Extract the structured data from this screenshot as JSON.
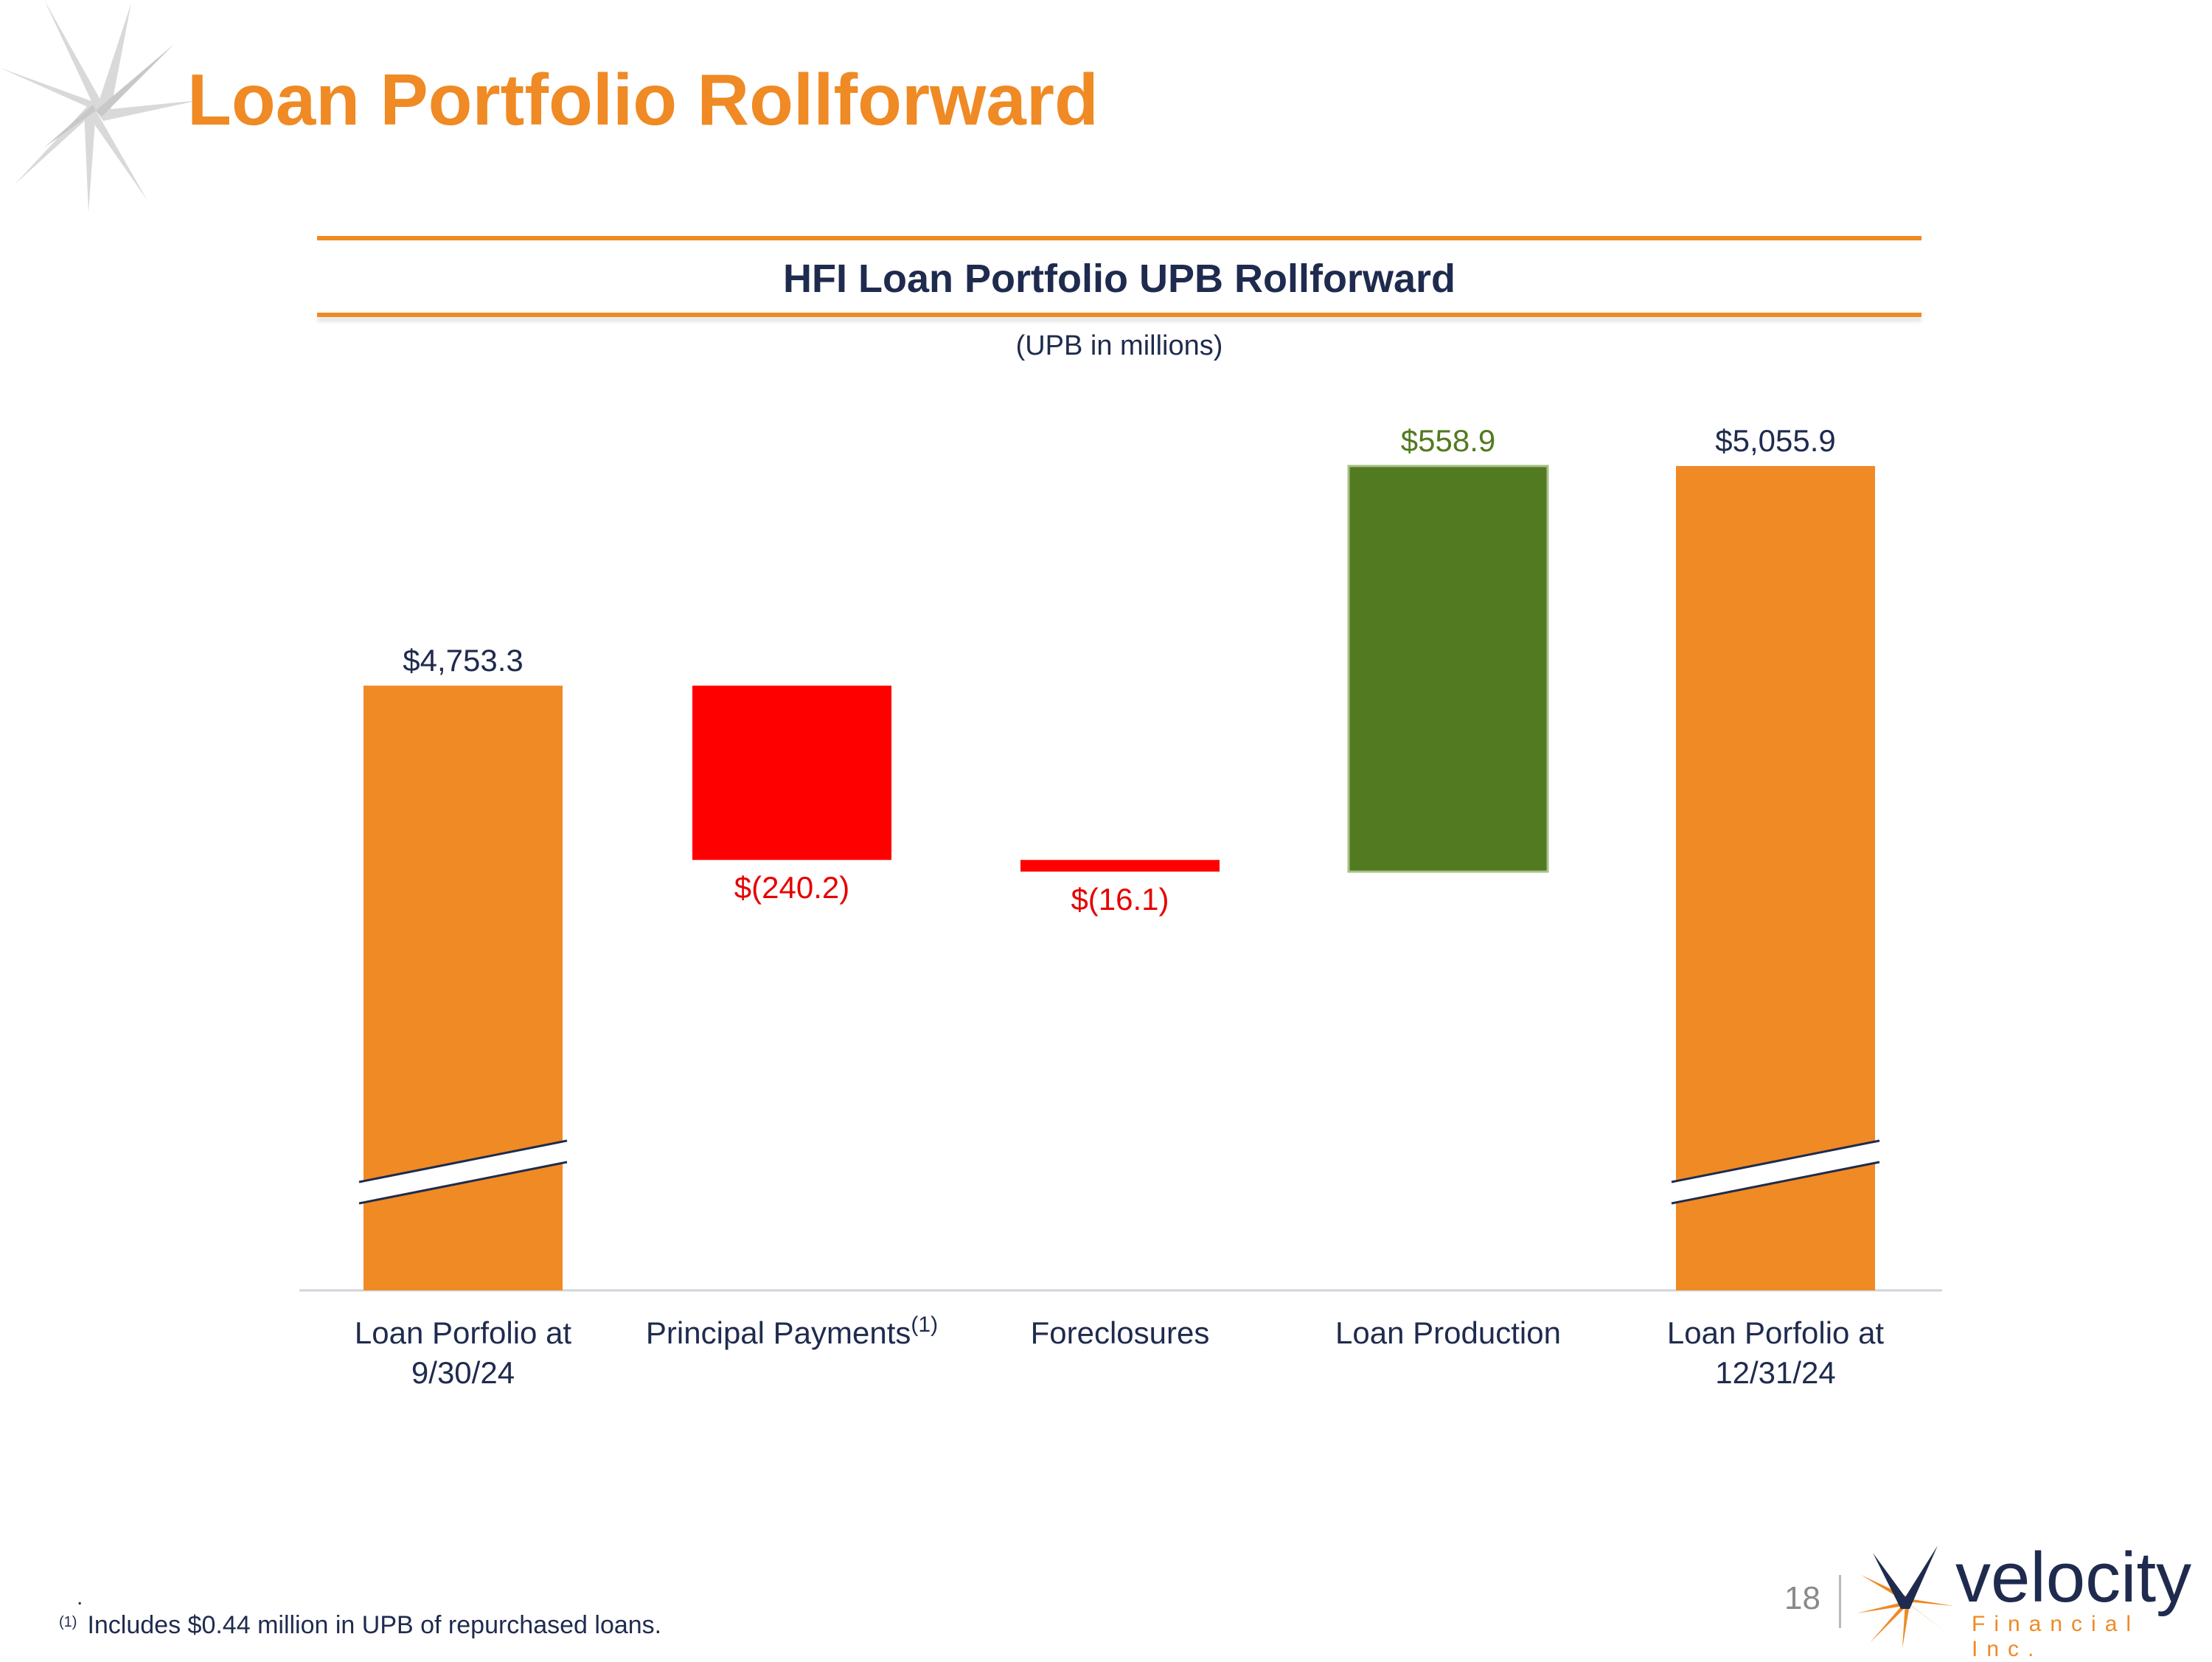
{
  "page": {
    "title": "Loan Portfolio Rollforward",
    "page_number": "18",
    "footnote_marker": "(1)",
    "footnote_text": "Includes $0.44 million in UPB of repurchased loans.",
    "footnote_dot": ".",
    "logo_name": "velocity",
    "logo_sub": "Financial Inc.",
    "colors": {
      "accent": "#EF8A24",
      "navy": "#1F2B4E",
      "negative": "#FF0000",
      "positive": "#527A20"
    }
  },
  "chart_data": {
    "type": "bar",
    "subtype": "waterfall",
    "title": "HFI Loan Portfolio UPB Rollforward",
    "subtitle": "(UPB in millions)",
    "axis_break": true,
    "categories": [
      "Loan Porfolio at 9/30/24",
      "Principal Payments",
      "Foreclosures",
      "Loan Production",
      "Loan Porfolio at 12/31/24"
    ],
    "category_lines": [
      [
        "Loan Porfolio at",
        "9/30/24"
      ],
      [
        "Principal Payments"
      ],
      [
        "Foreclosures"
      ],
      [
        "Loan Production"
      ],
      [
        "Loan Porfolio at",
        "12/31/24"
      ]
    ],
    "category_superscripts": [
      "",
      "(1)",
      "",
      "",
      ""
    ],
    "values": [
      4753.3,
      -240.2,
      -16.1,
      558.9,
      5055.9
    ],
    "bar_kinds": [
      "total",
      "decrease",
      "decrease",
      "increase",
      "total"
    ],
    "labels": [
      "$4,753.3",
      "$(240.2)",
      "$(16.1)",
      "$558.9",
      "$5,055.9"
    ],
    "series_colors": [
      "#EF8A24",
      "#FF0000",
      "#FF0000",
      "#527A20",
      "#EF8A24"
    ],
    "label_colors": [
      "#1F2B4E",
      "#E60000",
      "#E60000",
      "#527A20",
      "#1F2B4E"
    ],
    "ylim": [
      3920,
      5055.9
    ]
  }
}
